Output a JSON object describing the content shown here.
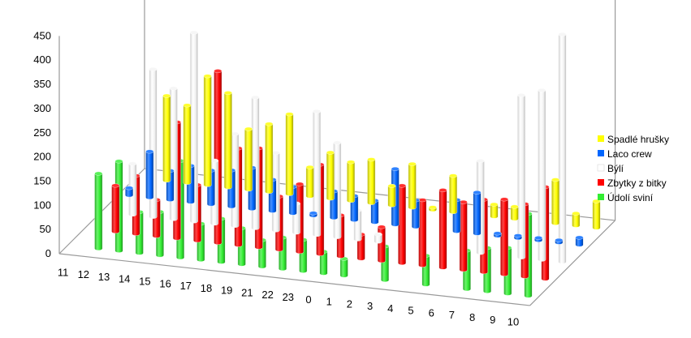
{
  "chart_data": {
    "type": "bar",
    "variant": "3d-cylinder-deep",
    "categories": [
      "11",
      "12",
      "13",
      "14",
      "15",
      "16",
      "17",
      "18",
      "19",
      "21",
      "22",
      "23",
      "0",
      "1",
      "2",
      "3",
      "4",
      "5",
      "6",
      "7",
      "8",
      "9",
      "10"
    ],
    "ylim": [
      0,
      450
    ],
    "y_ticks": [
      "0",
      "50",
      "100",
      "150",
      "200",
      "250",
      "300",
      "350",
      "400",
      "450"
    ],
    "legend_position": "right",
    "series": [
      {
        "name": "Spadlé hrušky",
        "color": "#ffff00",
        "values": [
          0,
          175,
          160,
          225,
          195,
          125,
          140,
          165,
          60,
          95,
          80,
          90,
          40,
          90,
          5,
          75,
          0,
          25,
          25,
          0,
          90,
          25,
          55
        ]
      },
      {
        "name": "Laco crew",
        "color": "#0066ff",
        "values": [
          15,
          95,
          60,
          75,
          70,
          75,
          85,
          65,
          55,
          5,
          55,
          50,
          45,
          115,
          55,
          0,
          65,
          85,
          5,
          5,
          5,
          5,
          15
        ]
      },
      {
        "name": "Býlí",
        "color": "#ffffff",
        "values": [
          0,
          105,
          305,
          270,
          390,
          130,
          190,
          270,
          160,
          60,
          255,
          195,
          60,
          15,
          0,
          0,
          0,
          0,
          190,
          0,
          335,
          350,
          470
        ]
      },
      {
        "name": "Zbytky z bitky",
        "color": "#ff0000",
        "values": [
          0,
          95,
          120,
          75,
          240,
          115,
          355,
          200,
          205,
          110,
          140,
          185,
          85,
          50,
          70,
          160,
          135,
          160,
          140,
          150,
          155,
          150,
          190
        ]
      },
      {
        "name": "Údolí sviní",
        "color": "#33ee33",
        "values": [
          0,
          155,
          185,
          85,
          90,
          200,
          75,
          90,
          75,
          55,
          65,
          65,
          45,
          35,
          0,
          70,
          0,
          60,
          0,
          80,
          90,
          95,
          170
        ]
      }
    ]
  }
}
